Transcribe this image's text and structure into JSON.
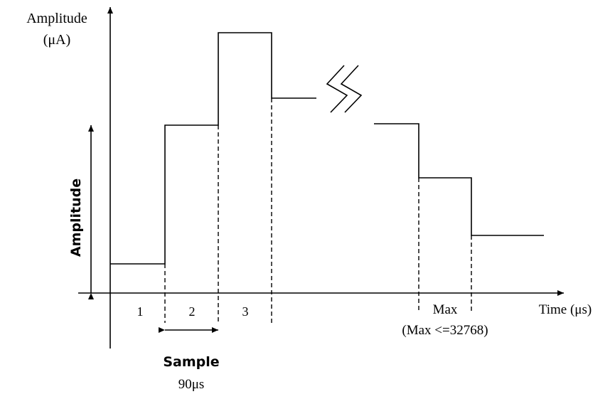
{
  "y_axis_label_line1": "Amplitude",
  "y_axis_label_line2": "(μA)",
  "side_amplitude_label": "Amplitude",
  "x_axis_label": "Time (μs)",
  "sample_indices": [
    "1",
    "2",
    "3"
  ],
  "max_label": "Max",
  "max_constraint": "(Max <=32768)",
  "sample_label": "Sample",
  "sample_duration": "90μs"
}
